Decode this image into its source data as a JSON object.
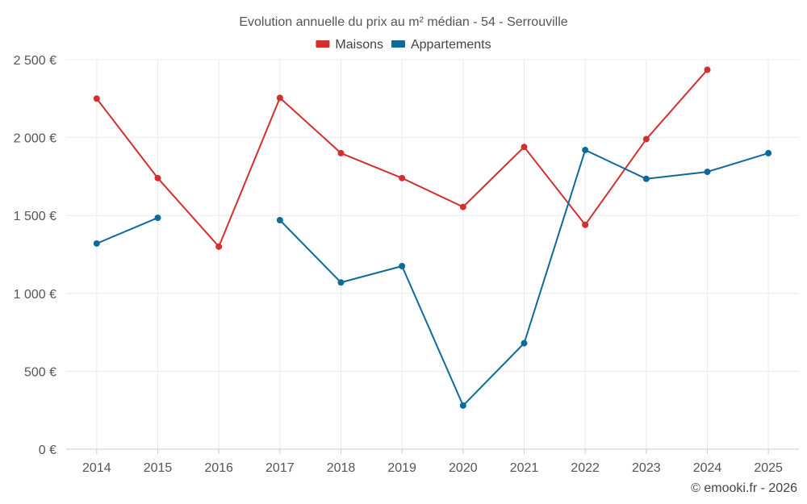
{
  "chart_data": {
    "type": "line",
    "title": "Evolution annuelle du prix au m² médian - 54 - Serrouville",
    "categories": [
      "2014",
      "2015",
      "2016",
      "2017",
      "2018",
      "2019",
      "2020",
      "2021",
      "2022",
      "2023",
      "2024",
      "2025"
    ],
    "series": [
      {
        "name": "Maisons",
        "color": "#d32f2f",
        "values": [
          2250,
          1740,
          1300,
          2255,
          1900,
          1740,
          1555,
          1940,
          1440,
          1990,
          2435,
          null
        ]
      },
      {
        "name": "Appartements",
        "color": "#0d6a9b",
        "values": [
          1320,
          1485,
          null,
          1470,
          1070,
          1175,
          280,
          680,
          1920,
          1735,
          1780,
          1900
        ]
      }
    ],
    "ylim": [
      0,
      2500
    ],
    "yticks": [
      0,
      500,
      1000,
      1500,
      2000,
      2500
    ],
    "ytick_labels": [
      "0 €",
      "500 €",
      "1 000 €",
      "1 500 €",
      "2 000 €",
      "2 500 €"
    ],
    "xlabel": "",
    "ylabel": "",
    "legend": "top-center",
    "grid": true
  },
  "credit": "© emooki.fr - 2026"
}
